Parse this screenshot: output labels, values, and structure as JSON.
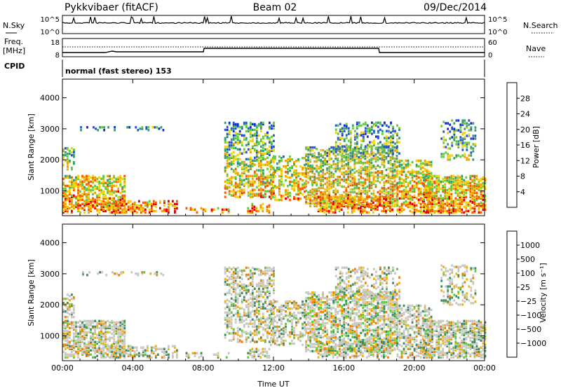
{
  "header": {
    "site": "Pykkvibaer (fitACF)",
    "beam": "Beam 02",
    "date": "09/Dec/2014"
  },
  "top_panels": {
    "nsky_label": "N.Sky",
    "nsky_ticks": [
      "10^5",
      "10^0"
    ],
    "nsearch_label": "N.Search",
    "nsearch_ticks": [
      "10^5",
      "10^0"
    ],
    "freq_label": "Freq.",
    "freq_unit": "[MHz]",
    "freq_ticks": [
      "18",
      "8"
    ],
    "nave_label": "Nave",
    "nave_ticks": [
      "60",
      "0"
    ],
    "cpid_label": "CPID",
    "cpid_value": "normal (fast stereo) 153"
  },
  "colors": {
    "power": [
      "#1428d2",
      "#2a55c8",
      "#3c9a6e",
      "#64c840",
      "#f0d010",
      "#f0a000",
      "#f05a00",
      "#dc0000"
    ],
    "velocity": [
      "#1e3cc8",
      "#2e6ad2",
      "#3c8c64",
      "#5cc83c",
      "#c8c8c0",
      "#c8c8c0",
      "#f0b400",
      "#f08200",
      "#f04600",
      "#e60000"
    ]
  },
  "chart_data": [
    {
      "type": "heatmap",
      "name": "power",
      "xlabel": "",
      "ylabel": "Slant Range [km]",
      "x_ticks": [
        "00:00",
        "04:00",
        "08:00",
        "12:00",
        "16:00",
        "20:00",
        "00:00"
      ],
      "x_range_hours": [
        0,
        24
      ],
      "y_ticks": [
        "1000",
        "2000",
        "3000",
        "4000"
      ],
      "ylim": [
        200,
        4600
      ],
      "colorbar_label": "Power [dB]",
      "colorbar_ticks": [
        "4",
        "8",
        "12",
        "16",
        "20",
        "24",
        "28"
      ]
    },
    {
      "type": "heatmap",
      "name": "velocity",
      "xlabel": "Time UT",
      "ylabel": "Slant Range [km]",
      "x_ticks": [
        "00:00",
        "04:00",
        "08:00",
        "12:00",
        "16:00",
        "20:00",
        "00:00"
      ],
      "x_range_hours": [
        0,
        24
      ],
      "y_ticks": [
        "1000",
        "2000",
        "3000",
        "4000"
      ],
      "ylim": [
        200,
        4600
      ],
      "colorbar_label": "Velocity [m s⁻¹]",
      "colorbar_ticks": [
        "1000",
        "500",
        "100",
        "25",
        "−25",
        "−100",
        "−500",
        "−1000"
      ]
    }
  ]
}
